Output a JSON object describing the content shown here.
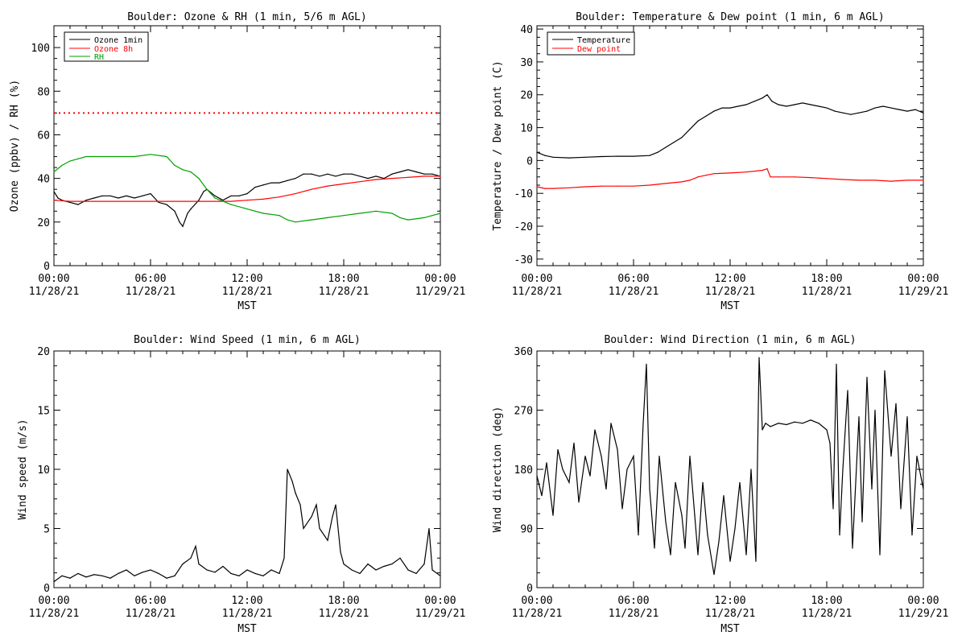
{
  "chart_data": [
    {
      "type": "line",
      "title": "Boulder: Ozone & RH (1 min, 5/6 m AGL)",
      "xlabel": "MST",
      "ylabel": "Ozone (ppbv) / RH (%)",
      "ylim": [
        0,
        110
      ],
      "yticks": [
        0,
        20,
        40,
        60,
        80,
        100
      ],
      "xlim": [
        0,
        24
      ],
      "xticks": [
        0,
        6,
        12,
        18,
        24
      ],
      "xticklabels": [
        [
          "00:00",
          "11/28/21"
        ],
        [
          "06:00",
          "11/28/21"
        ],
        [
          "12:00",
          "11/28/21"
        ],
        [
          "18:00",
          "11/28/21"
        ],
        [
          "00:00",
          "11/29/21"
        ]
      ],
      "legend": "top-left",
      "reference_line": {
        "y": 70,
        "color": "#ff0000",
        "style": "dotted"
      },
      "series": [
        {
          "name": "Ozone 1min",
          "color": "#000000",
          "x": [
            0,
            0.25,
            0.5,
            1,
            1.5,
            2,
            2.5,
            3,
            3.5,
            4,
            4.5,
            5,
            5.5,
            6,
            6.5,
            7,
            7.5,
            7.8,
            8,
            8.3,
            8.5,
            9,
            9.3,
            9.5,
            10,
            10.5,
            11,
            11.5,
            12,
            12.5,
            13,
            13.5,
            14,
            14.5,
            15,
            15.5,
            16,
            16.5,
            17,
            17.5,
            18,
            18.5,
            19,
            19.5,
            20,
            20.5,
            21,
            21.5,
            22,
            22.5,
            23,
            23.5,
            24
          ],
          "y": [
            34,
            31,
            30,
            29,
            28,
            30,
            31,
            32,
            32,
            31,
            32,
            31,
            32,
            33,
            29,
            28,
            25,
            20,
            18,
            24,
            26,
            30,
            34,
            35,
            32,
            30,
            32,
            32,
            33,
            36,
            37,
            38,
            38,
            39,
            40,
            42,
            42,
            41,
            42,
            41,
            42,
            42,
            41,
            40,
            41,
            40,
            42,
            43,
            44,
            43,
            42,
            42,
            41
          ]
        },
        {
          "name": "Ozone 8h",
          "color": "#ff0000",
          "x": [
            0,
            1,
            2,
            3,
            4,
            5,
            6,
            7,
            8,
            9,
            10,
            11,
            12,
            13,
            14,
            15,
            16,
            17,
            18,
            19,
            20,
            21,
            22,
            23,
            24
          ],
          "y": [
            30,
            29.5,
            29.5,
            29.5,
            29.5,
            29.5,
            29.5,
            29.5,
            29.5,
            29.5,
            29.5,
            29.5,
            30,
            30.5,
            31.5,
            33,
            35,
            36.5,
            37.5,
            38.5,
            39.5,
            40,
            40.5,
            41,
            41
          ]
        },
        {
          "name": "RH",
          "color": "#00a000",
          "x": [
            0,
            0.5,
            1,
            1.5,
            2,
            3,
            4,
            5,
            6,
            7,
            7.5,
            8,
            8.5,
            9,
            9.5,
            10,
            11,
            12,
            13,
            14,
            14.5,
            15,
            16,
            17,
            18,
            19,
            20,
            21,
            21.5,
            22,
            23,
            23.5,
            24
          ],
          "y": [
            43,
            46,
            48,
            49,
            50,
            50,
            50,
            50,
            51,
            50,
            46,
            44,
            43,
            40,
            35,
            31,
            28,
            26,
            24,
            23,
            21,
            20,
            21,
            22,
            23,
            24,
            25,
            24,
            22,
            21,
            22,
            23,
            24
          ]
        }
      ]
    },
    {
      "type": "line",
      "title": "Boulder: Temperature & Dew point (1 min, 6 m AGL)",
      "xlabel": "MST",
      "ylabel": "Temperature / Dew point (C)",
      "ylim": [
        -32,
        41
      ],
      "yticks": [
        -30,
        -20,
        -10,
        0,
        10,
        20,
        30,
        40
      ],
      "xlim": [
        0,
        24
      ],
      "xticks": [
        0,
        6,
        12,
        18,
        24
      ],
      "xticklabels": [
        [
          "00:00",
          "11/28/21"
        ],
        [
          "06:00",
          "11/28/21"
        ],
        [
          "12:00",
          "11/28/21"
        ],
        [
          "18:00",
          "11/28/21"
        ],
        [
          "00:00",
          "11/29/21"
        ]
      ],
      "legend": "top-left",
      "series": [
        {
          "name": "Temperature",
          "color": "#000000",
          "x": [
            0,
            0.5,
            1,
            2,
            3,
            4,
            5,
            6,
            7,
            7.5,
            8,
            8.5,
            9,
            9.5,
            10,
            10.5,
            11,
            11.5,
            12,
            12.5,
            13,
            13.5,
            14,
            14.3,
            14.6,
            15,
            15.5,
            16,
            16.5,
            17,
            17.5,
            18,
            18.5,
            19,
            19.5,
            20,
            20.5,
            21,
            21.5,
            22,
            22.5,
            23,
            23.5,
            24
          ],
          "y": [
            2.5,
            1.5,
            1,
            0.8,
            1,
            1.2,
            1.3,
            1.3,
            1.5,
            2.5,
            4,
            5.5,
            7,
            9.5,
            12,
            13.5,
            15,
            16,
            16,
            16.5,
            17,
            18,
            19,
            20,
            18,
            17,
            16.5,
            17,
            17.5,
            17,
            16.5,
            16,
            15,
            14.5,
            14,
            14.5,
            15,
            16,
            16.5,
            16,
            15.5,
            15,
            15.5,
            14.5
          ]
        },
        {
          "name": "Dew point",
          "color": "#ff0000",
          "x": [
            0,
            0.5,
            1,
            2,
            3,
            4,
            5,
            6,
            7,
            8,
            9,
            9.5,
            10,
            10.5,
            11,
            12,
            13,
            14,
            14.3,
            14.5,
            15,
            16,
            17,
            18,
            19,
            20,
            21,
            22,
            23,
            23.5,
            24
          ],
          "y": [
            -8,
            -8.5,
            -8.5,
            -8.3,
            -8,
            -7.8,
            -7.8,
            -7.8,
            -7.5,
            -7,
            -6.5,
            -6,
            -5,
            -4.5,
            -4,
            -3.8,
            -3.5,
            -3,
            -2.5,
            -5,
            -5,
            -5,
            -5.2,
            -5.5,
            -5.8,
            -6,
            -6,
            -6.3,
            -6,
            -6,
            -6
          ]
        }
      ]
    },
    {
      "type": "line",
      "title": "Boulder: Wind Speed (1 min, 6 m AGL)",
      "xlabel": "MST",
      "ylabel": "Wind speed (m/s)",
      "ylim": [
        0,
        20
      ],
      "yticks": [
        0,
        5,
        10,
        15,
        20
      ],
      "xlim": [
        0,
        24
      ],
      "xticks": [
        0,
        6,
        12,
        18,
        24
      ],
      "xticklabels": [
        [
          "00:00",
          "11/28/21"
        ],
        [
          "06:00",
          "11/28/21"
        ],
        [
          "12:00",
          "11/28/21"
        ],
        [
          "18:00",
          "11/28/21"
        ],
        [
          "00:00",
          "11/29/21"
        ]
      ],
      "series": [
        {
          "name": "",
          "color": "#000000",
          "x": [
            0,
            0.5,
            1,
            1.5,
            2,
            2.5,
            3,
            3.5,
            4,
            4.5,
            5,
            5.5,
            6,
            6.5,
            7,
            7.5,
            8,
            8.5,
            8.8,
            9,
            9.5,
            10,
            10.5,
            11,
            11.5,
            12,
            12.5,
            13,
            13.5,
            14,
            14.3,
            14.5,
            14.8,
            15,
            15.3,
            15.5,
            16,
            16.3,
            16.5,
            17,
            17.3,
            17.5,
            17.8,
            18,
            18.5,
            19,
            19.5,
            20,
            20.5,
            21,
            21.5,
            22,
            22.5,
            23,
            23.3,
            23.5,
            24
          ],
          "y": [
            0.5,
            1,
            0.8,
            1.2,
            0.9,
            1.1,
            1,
            0.8,
            1.2,
            1.5,
            1,
            1.3,
            1.5,
            1.2,
            0.8,
            1,
            2,
            2.5,
            3.5,
            2,
            1.5,
            1.3,
            1.8,
            1.2,
            1,
            1.5,
            1.2,
            1,
            1.5,
            1.2,
            2.5,
            10,
            9,
            8,
            7,
            5,
            6,
            7,
            5,
            4,
            6,
            7,
            3,
            2,
            1.5,
            1.2,
            2,
            1.5,
            1.8,
            2,
            2.5,
            1.5,
            1.2,
            2,
            5,
            1.5,
            1
          ]
        }
      ]
    },
    {
      "type": "line",
      "title": "Boulder: Wind Direction (1 min, 6 m AGL)",
      "xlabel": "MST",
      "ylabel": "Wind direction (deg)",
      "ylim": [
        0,
        360
      ],
      "yticks": [
        0,
        90,
        180,
        270,
        360
      ],
      "xlim": [
        0,
        24
      ],
      "xticks": [
        0,
        6,
        12,
        18,
        24
      ],
      "xticklabels": [
        [
          "00:00",
          "11/28/21"
        ],
        [
          "06:00",
          "11/28/21"
        ],
        [
          "12:00",
          "11/28/21"
        ],
        [
          "18:00",
          "11/28/21"
        ],
        [
          "00:00",
          "11/29/21"
        ]
      ],
      "series": [
        {
          "name": "",
          "color": "#000000",
          "x": [
            0,
            0.3,
            0.6,
            1,
            1.3,
            1.6,
            2,
            2.3,
            2.6,
            3,
            3.3,
            3.6,
            4,
            4.3,
            4.6,
            5,
            5.3,
            5.6,
            6,
            6.3,
            6.6,
            6.8,
            7,
            7.3,
            7.6,
            8,
            8.3,
            8.6,
            9,
            9.2,
            9.5,
            9.8,
            10,
            10.3,
            10.6,
            11,
            11.3,
            11.6,
            12,
            12.3,
            12.6,
            13,
            13.3,
            13.6,
            13.8,
            14,
            14.2,
            14.5,
            15,
            15.5,
            16,
            16.5,
            17,
            17.5,
            18,
            18.2,
            18.4,
            18.6,
            18.8,
            19,
            19.3,
            19.6,
            20,
            20.2,
            20.5,
            20.8,
            21,
            21.3,
            21.6,
            22,
            22.3,
            22.6,
            23,
            23.3,
            23.6,
            24
          ],
          "y": [
            170,
            140,
            190,
            110,
            210,
            180,
            160,
            220,
            130,
            200,
            170,
            240,
            200,
            150,
            250,
            210,
            120,
            180,
            200,
            80,
            250,
            340,
            150,
            60,
            200,
            100,
            50,
            160,
            110,
            60,
            200,
            110,
            50,
            160,
            80,
            20,
            70,
            140,
            40,
            90,
            160,
            50,
            180,
            40,
            350,
            240,
            250,
            245,
            250,
            248,
            252,
            250,
            255,
            250,
            240,
            220,
            120,
            340,
            80,
            180,
            300,
            60,
            260,
            100,
            320,
            150,
            270,
            50,
            330,
            200,
            280,
            120,
            260,
            80,
            200,
            150
          ]
        }
      ]
    }
  ]
}
